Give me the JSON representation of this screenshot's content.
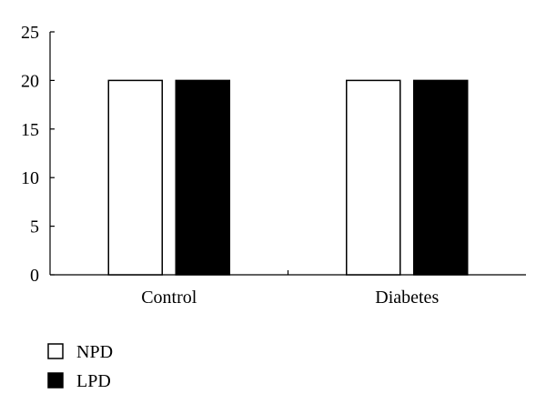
{
  "chart_data": {
    "type": "bar",
    "categories": [
      "Control",
      "Diabetes"
    ],
    "series": [
      {
        "name": "NPD",
        "values": [
          20,
          20
        ],
        "color": "#ffffff"
      },
      {
        "name": "LPD",
        "values": [
          20,
          20
        ],
        "color": "#000000"
      }
    ],
    "ylim": [
      0,
      25
    ],
    "yticks": [
      0,
      5,
      10,
      15,
      20,
      25
    ],
    "title": "",
    "xlabel": "",
    "ylabel": "",
    "grid": false,
    "legend_position": "bottom-left"
  }
}
